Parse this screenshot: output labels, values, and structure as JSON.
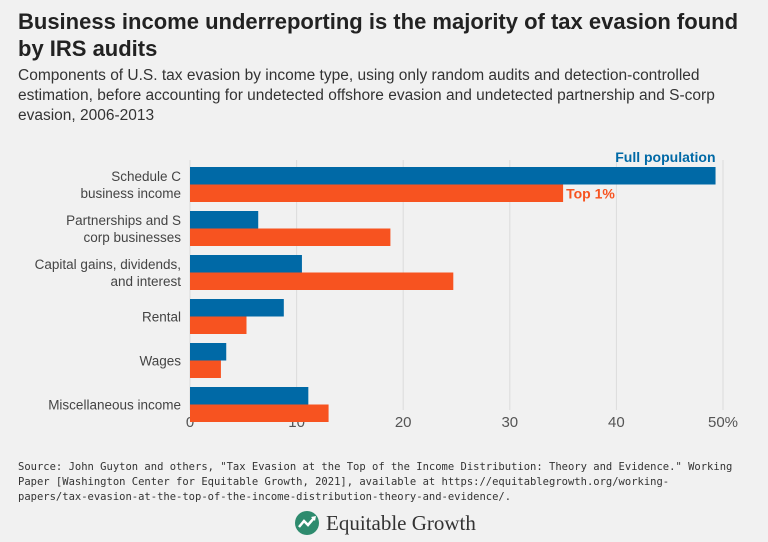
{
  "title": "Business income underreporting is the majority of tax evasion found by IRS audits",
  "subtitle": "Components of U.S. tax evasion by income type, using only random audits and detection-controlled estimation, before accounting for undetected offshore evasion and undetected partnership and S-corp evasion, 2006-2013",
  "source": "Source: John Guyton and others, \"Tax Evasion at the Top of the Income Distribution: Theory and Evidence.\" Working Paper [Washington Center for Equitable Growth, 2021], available at https://equitablegrowth.org/working-papers/tax-evasion-at-the-top-of-the-income-distribution-theory-and-evidence/.",
  "logo": {
    "text": "Equitable Growth",
    "color": "#2e8b6e"
  },
  "chart_data": {
    "type": "bar",
    "orientation": "horizontal",
    "categories": [
      [
        "Schedule C",
        "business income"
      ],
      [
        "Partnerships and S",
        "corp businesses"
      ],
      [
        "Capital gains, dividends,",
        "and interest"
      ],
      [
        "Rental"
      ],
      [
        "Wages"
      ],
      [
        "Miscellaneous income"
      ]
    ],
    "series": [
      {
        "name": "Full population",
        "color": "#0069a6",
        "values": [
          49.3,
          6.4,
          10.5,
          8.8,
          3.4,
          11.1
        ]
      },
      {
        "name": "Top 1%",
        "color": "#f75320",
        "values": [
          35.0,
          18.8,
          24.7,
          5.3,
          2.9,
          13.0
        ]
      }
    ],
    "xlim": [
      0,
      50
    ],
    "ticks": [
      "0",
      "10",
      "20",
      "30",
      "40",
      "50%"
    ],
    "tick_values": [
      0,
      10,
      20,
      30,
      40,
      50
    ],
    "grid": true,
    "legend": "direct labels at top bar"
  }
}
